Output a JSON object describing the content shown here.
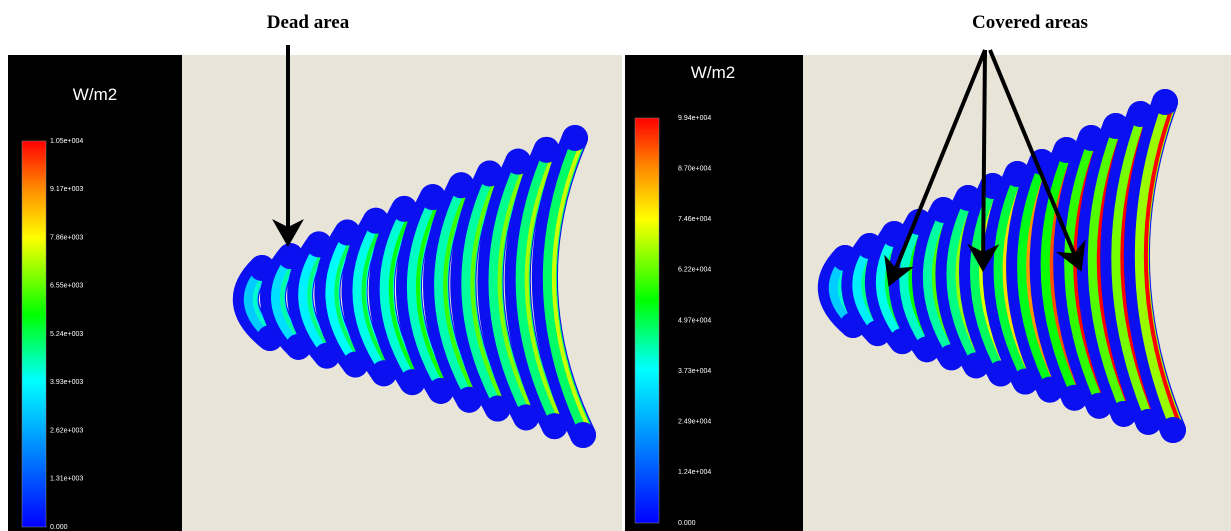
{
  "panels": [
    {
      "annotation": "Dead area",
      "unit": "W/m2",
      "legend_labels": [
        "1.05e+004",
        "9.17e+003",
        "7.86e+003",
        "6.55e+003",
        "5.24e+003",
        "3.93e+003",
        "2.62e+003",
        "1.31e+003",
        "0.000"
      ]
    },
    {
      "annotation": "Covered areas",
      "unit": "W/m2",
      "legend_labels": [
        "9.94e+004",
        "8.70e+004",
        "7.46e+004",
        "6.22e+004",
        "4.97e+004",
        "3.73e+004",
        "2.49e+004",
        "1.24e+004",
        "0.000"
      ]
    }
  ]
}
